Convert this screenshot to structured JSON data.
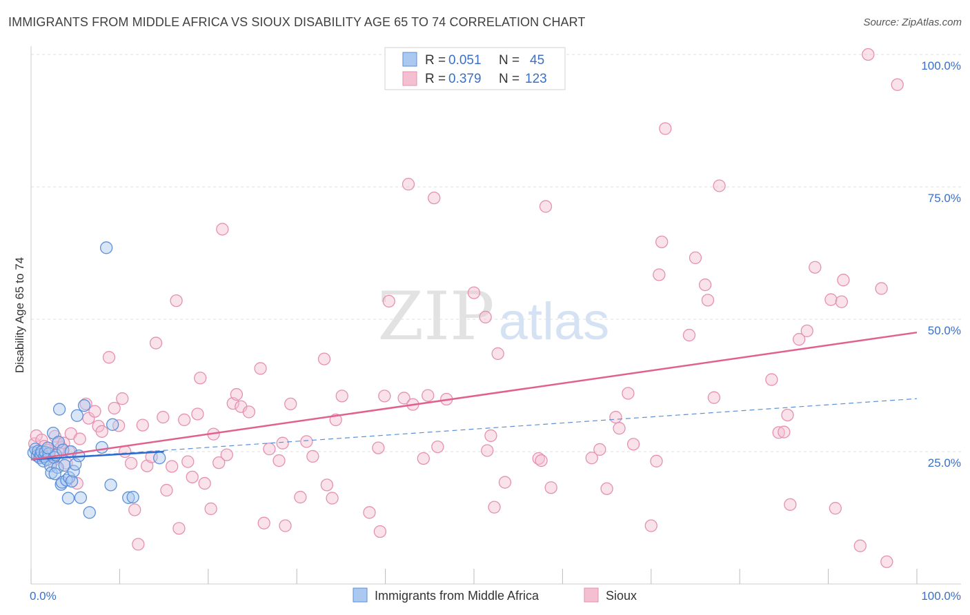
{
  "title": "IMMIGRANTS FROM MIDDLE AFRICA VS SIOUX DISABILITY AGE 65 TO 74 CORRELATION CHART",
  "source": "Source: ZipAtlas.com",
  "watermark": {
    "zip": "ZIP",
    "atlas": "atlas"
  },
  "colors": {
    "blue": "#5b8fd8",
    "blue_fill": "#aac8f0",
    "blue_line": "#2a6bd0",
    "pink": "#e590b0",
    "pink_fill": "#f5bfd2",
    "pink_line": "#e0608e",
    "grid": "#dddddd",
    "axis_label": "#3a6fc6"
  },
  "chart_data": {
    "type": "scatter",
    "title": "IMMIGRANTS FROM MIDDLE AFRICA VS SIOUX DISABILITY AGE 65 TO 74 CORRELATION CHART",
    "xlabel": "",
    "ylabel": "Disability Age 65 to 74",
    "xlim": [
      0,
      100
    ],
    "ylim": [
      0,
      100
    ],
    "x_tick_labels": [
      "0.0%",
      "100.0%"
    ],
    "y_tick_labels": [
      "25.0%",
      "50.0%",
      "75.0%",
      "100.0%"
    ],
    "y_ticks": [
      25,
      50,
      75,
      100
    ],
    "legend": [
      {
        "name": "Immigrants from Middle Africa",
        "r_label": "R =",
        "r": "0.051",
        "n_label": "N =",
        "n": "45"
      },
      {
        "name": "Sioux",
        "r_label": "R =",
        "r": "0.379",
        "n_label": "N =",
        "n": "123"
      }
    ],
    "series": [
      {
        "name": "Immigrants from Middle Africa",
        "color": "blue",
        "trend_solid": [
          [
            0,
            23.5
          ],
          [
            15,
            25
          ]
        ],
        "trend_dashed": [
          [
            0,
            23.5
          ],
          [
            100,
            35
          ]
        ],
        "points": [
          [
            0.3,
            24.8
          ],
          [
            0.5,
            25.5
          ],
          [
            0.7,
            24.2
          ],
          [
            0.8,
            25.1
          ],
          [
            1.0,
            23.8
          ],
          [
            1.1,
            24.5
          ],
          [
            1.2,
            25.0
          ],
          [
            1.4,
            23.2
          ],
          [
            1.5,
            24.0
          ],
          [
            1.6,
            24.9
          ],
          [
            1.8,
            23.5
          ],
          [
            2.0,
            24.6
          ],
          [
            2.2,
            22.3
          ],
          [
            2.3,
            21.0
          ],
          [
            2.5,
            28.5
          ],
          [
            2.6,
            23.9
          ],
          [
            2.8,
            24.4
          ],
          [
            3.0,
            22.0
          ],
          [
            3.1,
            26.8
          ],
          [
            3.2,
            33.0
          ],
          [
            3.4,
            18.8
          ],
          [
            3.5,
            19.2
          ],
          [
            3.6,
            25.3
          ],
          [
            3.8,
            22.4
          ],
          [
            4.0,
            19.6
          ],
          [
            4.2,
            16.2
          ],
          [
            4.3,
            20.1
          ],
          [
            4.5,
            25.0
          ],
          [
            4.6,
            19.4
          ],
          [
            4.8,
            21.3
          ],
          [
            5.0,
            22.6
          ],
          [
            5.2,
            31.8
          ],
          [
            5.4,
            24.2
          ],
          [
            5.6,
            16.3
          ],
          [
            6.0,
            33.7
          ],
          [
            6.6,
            13.5
          ],
          [
            8.0,
            25.8
          ],
          [
            8.5,
            63.5
          ],
          [
            9.0,
            18.7
          ],
          [
            9.2,
            30.1
          ],
          [
            11.0,
            16.3
          ],
          [
            11.5,
            16.4
          ],
          [
            14.5,
            23.8
          ],
          [
            2.7,
            20.8
          ],
          [
            1.9,
            25.7
          ]
        ]
      },
      {
        "name": "Sioux",
        "color": "pink",
        "trend_solid": [
          [
            0,
            23.5
          ],
          [
            100,
            47.5
          ]
        ],
        "points": [
          [
            0.4,
            26.5
          ],
          [
            0.6,
            28.0
          ],
          [
            0.9,
            24.0
          ],
          [
            1.2,
            27.2
          ],
          [
            1.5,
            26.0
          ],
          [
            1.9,
            25.3
          ],
          [
            2.1,
            24.7
          ],
          [
            2.4,
            23.1
          ],
          [
            2.7,
            27.9
          ],
          [
            3.0,
            26.5
          ],
          [
            3.4,
            25.8
          ],
          [
            3.7,
            26.6
          ],
          [
            4.0,
            22.8
          ],
          [
            4.3,
            25.0
          ],
          [
            4.5,
            28.4
          ],
          [
            5.2,
            19.0
          ],
          [
            5.5,
            27.4
          ],
          [
            6.2,
            34.0
          ],
          [
            6.5,
            31.3
          ],
          [
            7.2,
            32.6
          ],
          [
            7.6,
            29.8
          ],
          [
            8.0,
            28.8
          ],
          [
            8.8,
            42.8
          ],
          [
            9.4,
            33.2
          ],
          [
            9.9,
            29.9
          ],
          [
            10.3,
            35.0
          ],
          [
            10.6,
            25.0
          ],
          [
            11.3,
            22.8
          ],
          [
            11.7,
            14.0
          ],
          [
            12.1,
            7.5
          ],
          [
            12.6,
            30.0
          ],
          [
            13.1,
            22.3
          ],
          [
            13.6,
            24.0
          ],
          [
            14.1,
            45.5
          ],
          [
            14.9,
            31.5
          ],
          [
            15.3,
            17.7
          ],
          [
            15.9,
            22.2
          ],
          [
            16.4,
            53.5
          ],
          [
            16.7,
            10.5
          ],
          [
            17.3,
            31.0
          ],
          [
            17.7,
            23.1
          ],
          [
            18.2,
            20.2
          ],
          [
            18.8,
            32.1
          ],
          [
            19.1,
            38.9
          ],
          [
            19.6,
            19.0
          ],
          [
            20.3,
            14.2
          ],
          [
            20.6,
            28.3
          ],
          [
            21.2,
            22.9
          ],
          [
            21.6,
            67.0
          ],
          [
            22.1,
            24.4
          ],
          [
            22.8,
            34.1
          ],
          [
            23.2,
            35.8
          ],
          [
            23.7,
            33.5
          ],
          [
            24.6,
            32.5
          ],
          [
            25.9,
            40.7
          ],
          [
            26.3,
            11.5
          ],
          [
            26.9,
            25.5
          ],
          [
            28.0,
            23.3
          ],
          [
            28.4,
            26.6
          ],
          [
            28.7,
            11.0
          ],
          [
            29.3,
            34.0
          ],
          [
            30.4,
            16.4
          ],
          [
            31.1,
            26.9
          ],
          [
            31.8,
            24.1
          ],
          [
            33.1,
            42.5
          ],
          [
            33.4,
            18.7
          ],
          [
            34.0,
            16.2
          ],
          [
            34.4,
            31.0
          ],
          [
            35.1,
            35.5
          ],
          [
            38.2,
            13.5
          ],
          [
            39.2,
            25.7
          ],
          [
            39.4,
            9.9
          ],
          [
            39.9,
            35.5
          ],
          [
            40.4,
            53.4
          ],
          [
            42.1,
            35.1
          ],
          [
            42.6,
            75.5
          ],
          [
            43.1,
            33.9
          ],
          [
            44.3,
            23.7
          ],
          [
            44.8,
            35.6
          ],
          [
            45.5,
            72.9
          ],
          [
            45.9,
            25.9
          ],
          [
            46.9,
            34.9
          ],
          [
            50.0,
            55.0
          ],
          [
            51.3,
            50.4
          ],
          [
            51.5,
            25.2
          ],
          [
            51.9,
            28.0
          ],
          [
            52.3,
            14.5
          ],
          [
            52.7,
            43.5
          ],
          [
            53.5,
            19.2
          ],
          [
            57.3,
            23.7
          ],
          [
            57.6,
            23.3
          ],
          [
            58.1,
            71.3
          ],
          [
            58.7,
            18.2
          ],
          [
            63.3,
            23.8
          ],
          [
            64.2,
            25.4
          ],
          [
            65.0,
            18.0
          ],
          [
            66.0,
            31.5
          ],
          [
            66.4,
            29.4
          ],
          [
            67.4,
            36.0
          ],
          [
            68.0,
            26.4
          ],
          [
            70.0,
            11.0
          ],
          [
            70.6,
            23.2
          ],
          [
            70.9,
            58.4
          ],
          [
            71.2,
            64.6
          ],
          [
            71.6,
            86.0
          ],
          [
            74.3,
            47.0
          ],
          [
            75.0,
            61.6
          ],
          [
            76.1,
            56.5
          ],
          [
            76.4,
            53.6
          ],
          [
            77.1,
            35.2
          ],
          [
            77.7,
            75.2
          ],
          [
            83.6,
            38.6
          ],
          [
            84.4,
            28.6
          ],
          [
            85.0,
            28.7
          ],
          [
            85.4,
            31.9
          ],
          [
            85.7,
            15.0
          ],
          [
            86.7,
            46.2
          ],
          [
            87.6,
            47.8
          ],
          [
            88.5,
            59.8
          ],
          [
            90.3,
            53.7
          ],
          [
            90.8,
            14.3
          ],
          [
            91.5,
            53.3
          ],
          [
            91.7,
            57.4
          ],
          [
            93.6,
            7.2
          ],
          [
            94.5,
            100.0
          ],
          [
            96.0,
            55.8
          ],
          [
            96.6,
            4.2
          ],
          [
            97.8,
            94.3
          ]
        ]
      }
    ]
  }
}
